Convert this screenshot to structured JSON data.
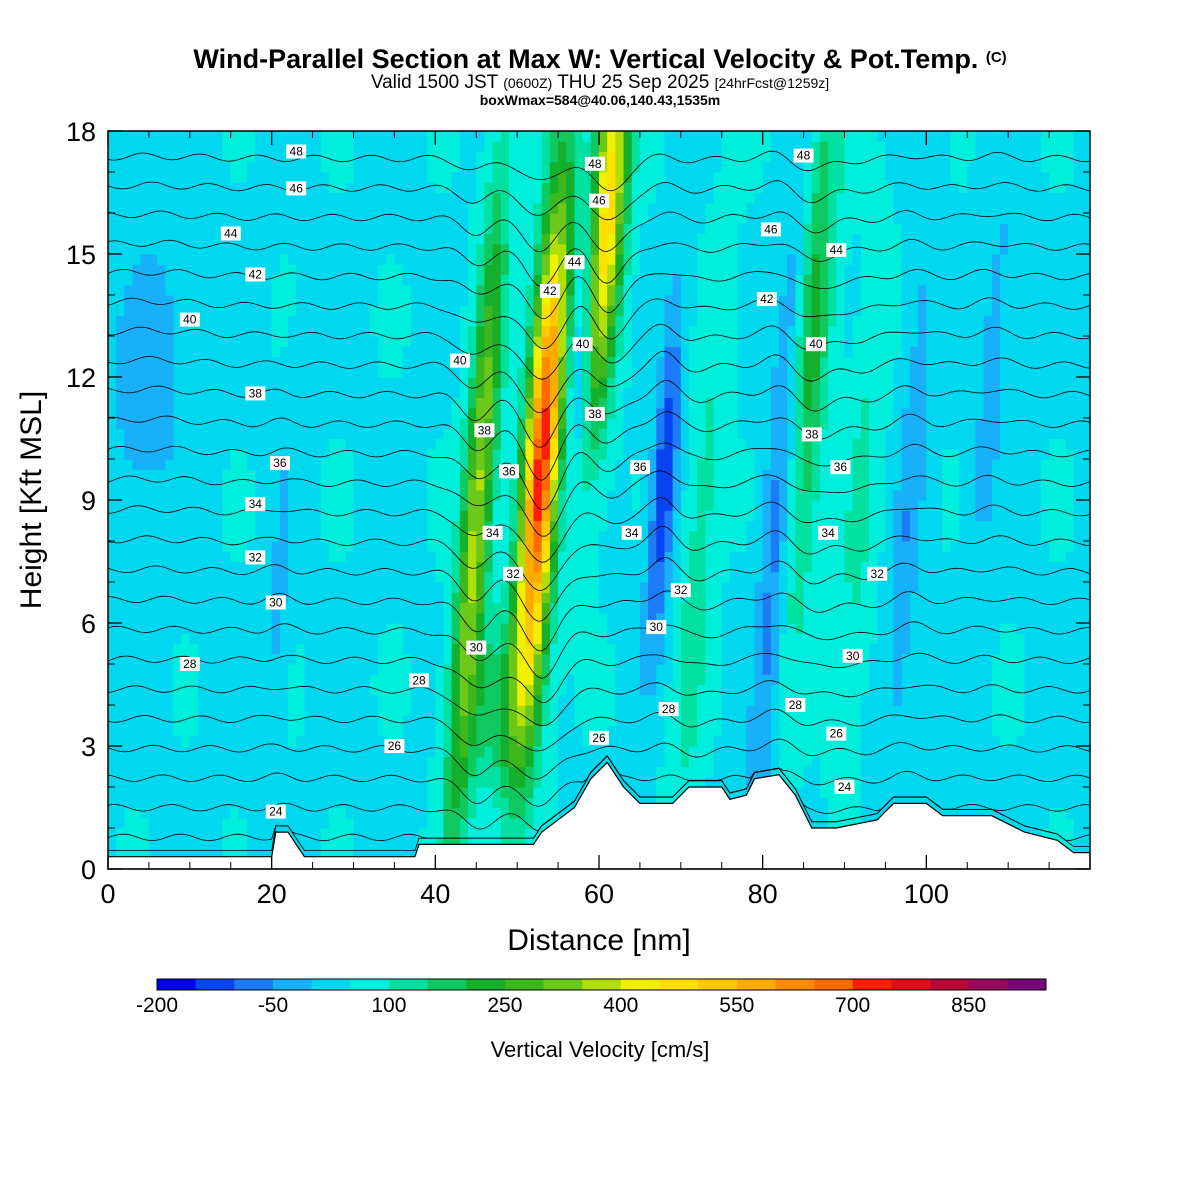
{
  "title": "Wind-Parallel Section at Max W: Vertical Velocity & Pot.Temp.",
  "title_mark": "(C)",
  "subtitle_main": "Valid 1500 JST",
  "subtitle_utc": "(0600Z)",
  "subtitle_date": "THU 25 Sep 2025",
  "subtitle_fcst": "[24hrFcst@1259z]",
  "boxline": "boxWmax=584@40.06,140.43,1535m",
  "chart_data": {
    "type": "heatmap",
    "xlabel": "Distance [nm]",
    "ylabel": "Height [Kft MSL]",
    "xlim": [
      0,
      120
    ],
    "ylim": [
      0,
      18
    ],
    "xticks": [
      0,
      20,
      40,
      60,
      80,
      100
    ],
    "yticks": [
      0,
      3,
      6,
      9,
      12,
      15,
      18
    ],
    "xtick_labels": [
      "0",
      "20",
      "40",
      "60",
      "80",
      "100"
    ],
    "ytick_labels": [
      "0",
      "3",
      "6",
      "9",
      "12",
      "15",
      "18"
    ],
    "colorbar": {
      "title": "Vertical Velocity [cm/s]",
      "min": -200,
      "max": 950,
      "step": 50,
      "labels": [
        "-200",
        "-50",
        "100",
        "250",
        "400",
        "550",
        "700",
        "850"
      ],
      "label_values": [
        -200,
        -50,
        100,
        250,
        400,
        550,
        700,
        850
      ],
      "colors": [
        "#0000ee",
        "#0a44f0",
        "#1e7bf8",
        "#18b0f8",
        "#00d8f0",
        "#00eedc",
        "#00e0a0",
        "#10c860",
        "#14b02c",
        "#3cb81c",
        "#6cc818",
        "#b0de08",
        "#f0f000",
        "#ffe000",
        "#ffc800",
        "#ffac00",
        "#ff8c00",
        "#ff6a00",
        "#ff1c08",
        "#e00c1c",
        "#b80838",
        "#98085c",
        "#780878"
      ]
    },
    "terrain": [
      [
        0,
        0.3
      ],
      [
        20,
        0.3
      ],
      [
        20.5,
        0.9
      ],
      [
        22,
        0.9
      ],
      [
        23,
        0.6
      ],
      [
        24,
        0.3
      ],
      [
        37.5,
        0.3
      ],
      [
        38,
        0.6
      ],
      [
        52,
        0.6
      ],
      [
        53,
        0.9
      ],
      [
        55,
        1.2
      ],
      [
        57,
        1.5
      ],
      [
        59,
        2.2
      ],
      [
        61,
        2.6
      ],
      [
        63,
        2.0
      ],
      [
        65,
        1.6
      ],
      [
        69,
        1.6
      ],
      [
        71,
        2.0
      ],
      [
        75,
        2.0
      ],
      [
        76,
        1.7
      ],
      [
        78,
        1.8
      ],
      [
        79,
        2.2
      ],
      [
        82,
        2.3
      ],
      [
        84,
        1.8
      ],
      [
        86,
        1.0
      ],
      [
        89,
        1.0
      ],
      [
        94,
        1.2
      ],
      [
        96,
        1.6
      ],
      [
        100,
        1.6
      ],
      [
        102,
        1.3
      ],
      [
        108,
        1.3
      ],
      [
        112,
        0.9
      ],
      [
        116,
        0.7
      ],
      [
        118,
        0.4
      ],
      [
        120,
        0.4
      ]
    ],
    "w_features": [
      {
        "x": 53,
        "y": 10,
        "sx": 1.5,
        "sy": 4.5,
        "amp": 680
      },
      {
        "x": 45,
        "y": 8.5,
        "sx": 1.3,
        "sy": 5.5,
        "amp": 320
      },
      {
        "x": 61,
        "y": 16,
        "sx": 1.5,
        "sy": 3.5,
        "amp": 460
      },
      {
        "x": 86,
        "y": 13,
        "sx": 1.6,
        "sy": 5,
        "amp": 180
      },
      {
        "x": 92,
        "y": 9,
        "sx": 1.5,
        "sy": 4,
        "amp": 70
      },
      {
        "x": 72,
        "y": 7,
        "sx": 1.5,
        "sy": 5,
        "amp": 80
      },
      {
        "x": 68,
        "y": 9.5,
        "sx": 1.1,
        "sy": 3,
        "amp": -190
      },
      {
        "x": 58,
        "y": 13,
        "sx": 1.1,
        "sy": 2.5,
        "amp": -140
      },
      {
        "x": 82,
        "y": 9,
        "sx": 1.3,
        "sy": 6,
        "amp": -130
      },
      {
        "x": 98,
        "y": 9,
        "sx": 1.2,
        "sy": 5,
        "amp": -90
      },
      {
        "x": 108,
        "y": 12,
        "sx": 1.3,
        "sy": 4,
        "amp": -70
      },
      {
        "x": 5,
        "y": 12,
        "sx": 4,
        "sy": 3,
        "amp": -70
      },
      {
        "x": 21,
        "y": 7,
        "sx": 1,
        "sy": 3,
        "amp": -60
      },
      {
        "x": 48,
        "y": 4,
        "sx": 3,
        "sy": 1.5,
        "amp": 120
      }
    ],
    "theta_levels": [
      24,
      25,
      26,
      27,
      28,
      29,
      30,
      31,
      32,
      33,
      34,
      35,
      36,
      37,
      38,
      39,
      40,
      41,
      42,
      43,
      44,
      45,
      46,
      47,
      48
    ],
    "contour_labels": [
      {
        "text": "48",
        "x": 23,
        "y": 17.5
      },
      {
        "text": "46",
        "x": 23,
        "y": 16.6
      },
      {
        "text": "44",
        "x": 15,
        "y": 15.5
      },
      {
        "text": "42",
        "x": 18,
        "y": 14.5
      },
      {
        "text": "40",
        "x": 10,
        "y": 13.4
      },
      {
        "text": "38",
        "x": 18,
        "y": 11.6
      },
      {
        "text": "36",
        "x": 21,
        "y": 9.9
      },
      {
        "text": "34",
        "x": 18,
        "y": 8.9
      },
      {
        "text": "32",
        "x": 18,
        "y": 7.6
      },
      {
        "text": "30",
        "x": 20.5,
        "y": 6.5
      },
      {
        "text": "28",
        "x": 10,
        "y": 5.0
      },
      {
        "text": "26",
        "x": 35,
        "y": 3.0
      },
      {
        "text": "24",
        "x": 20.5,
        "y": 1.4
      },
      {
        "text": "28",
        "x": 38,
        "y": 4.6
      },
      {
        "text": "30",
        "x": 45,
        "y": 5.4
      },
      {
        "text": "32",
        "x": 49.5,
        "y": 7.2
      },
      {
        "text": "34",
        "x": 47,
        "y": 8.2
      },
      {
        "text": "36",
        "x": 49,
        "y": 9.7
      },
      {
        "text": "38",
        "x": 46,
        "y": 10.7
      },
      {
        "text": "40",
        "x": 43,
        "y": 12.4
      },
      {
        "text": "42",
        "x": 54,
        "y": 14.1
      },
      {
        "text": "44",
        "x": 57,
        "y": 14.8
      },
      {
        "text": "46",
        "x": 60,
        "y": 16.3
      },
      {
        "text": "48",
        "x": 59.5,
        "y": 17.2
      },
      {
        "text": "40",
        "x": 58,
        "y": 12.8
      },
      {
        "text": "38",
        "x": 59.5,
        "y": 11.1
      },
      {
        "text": "36",
        "x": 65,
        "y": 9.8
      },
      {
        "text": "34",
        "x": 64,
        "y": 8.2
      },
      {
        "text": "32",
        "x": 70,
        "y": 6.8
      },
      {
        "text": "30",
        "x": 67,
        "y": 5.9
      },
      {
        "text": "28",
        "x": 68.5,
        "y": 3.9
      },
      {
        "text": "26",
        "x": 60,
        "y": 3.2
      },
      {
        "text": "46",
        "x": 81,
        "y": 15.6
      },
      {
        "text": "48",
        "x": 85,
        "y": 17.4
      },
      {
        "text": "44",
        "x": 89,
        "y": 15.1
      },
      {
        "text": "42",
        "x": 80.5,
        "y": 13.9
      },
      {
        "text": "40",
        "x": 86.5,
        "y": 12.8
      },
      {
        "text": "38",
        "x": 86,
        "y": 10.6
      },
      {
        "text": "36",
        "x": 89.5,
        "y": 9.8
      },
      {
        "text": "34",
        "x": 88,
        "y": 8.2
      },
      {
        "text": "32",
        "x": 94,
        "y": 7.2
      },
      {
        "text": "30",
        "x": 91,
        "y": 5.2
      },
      {
        "text": "28",
        "x": 84,
        "y": 4.0
      },
      {
        "text": "26",
        "x": 89,
        "y": 3.3
      },
      {
        "text": "24",
        "x": 90,
        "y": 2.0
      }
    ]
  }
}
